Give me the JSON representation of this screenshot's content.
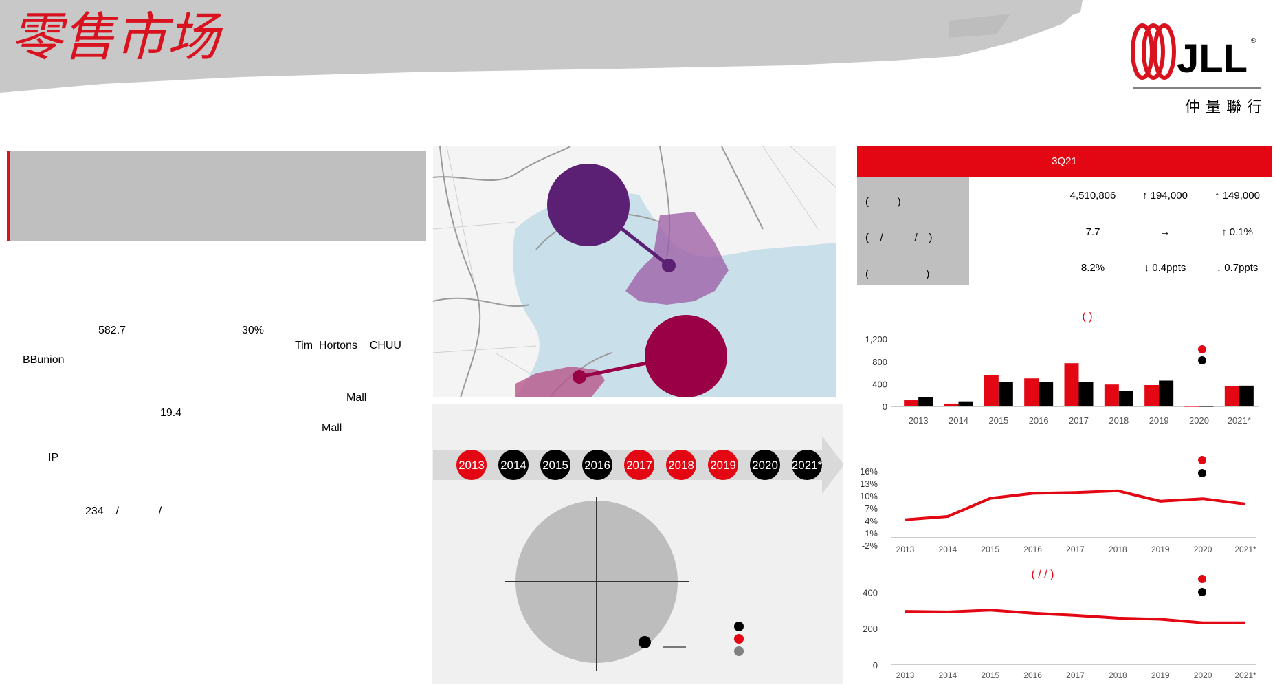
{
  "header": {
    "title_art": "零售市场",
    "logo_text": "JLL",
    "logo_sub": "仲量聯行"
  },
  "colors": {
    "red": "#e30613",
    "black": "#000000",
    "gray": "#808080",
    "purple": "#5b1f73",
    "magenta": "#9a0045"
  },
  "left_text": {
    "line1a": "582.7",
    "line1b": "30%",
    "line2": "Tim  Hortons    CHUU",
    "line3": "BBunion",
    "line4": "Mall",
    "line5": "19.4",
    "line6": "Mall",
    "line7": "IP",
    "line8": "234    /             /"
  },
  "timeline": {
    "years": [
      "2013",
      "2014",
      "2015",
      "2016",
      "2017",
      "2018",
      "2019",
      "2020",
      "2021*"
    ],
    "colors": [
      "red",
      "black",
      "black",
      "black",
      "red",
      "red",
      "red",
      "black",
      "black"
    ]
  },
  "table": {
    "header": "3Q21",
    "rows": [
      {
        "label": "(          )",
        "value": "4,510,806",
        "qoq": "↑ 194,000",
        "yoy": "↑ 149,000"
      },
      {
        "label": "(    /           /    )",
        "value": "7.7",
        "qoq": "→",
        "yoy": "↑ 0.1%"
      },
      {
        "label": "(                    )",
        "value": "8.2%",
        "qoq": "↓ 0.4ppts",
        "yoy": "↓ 0.7ppts"
      }
    ]
  },
  "chart_data": [
    {
      "type": "bar",
      "title": "(                    )",
      "categories": [
        "2013",
        "2014",
        "2015",
        "2016",
        "2017",
        "2018",
        "2019",
        "2020",
        "2021*"
      ],
      "series": [
        {
          "values": [
            110,
            50,
            560,
            500,
            770,
            390,
            380,
            5,
            360
          ]
        },
        {
          "values": [
            170,
            90,
            430,
            440,
            430,
            270,
            460,
            5,
            370
          ]
        }
      ],
      "yticks": [
        "0",
        "400",
        "800",
        "1,200"
      ],
      "ylim": [
        0,
        1300
      ]
    },
    {
      "type": "line",
      "categories": [
        "2013",
        "2014",
        "2015",
        "2016",
        "2017",
        "2018",
        "2019",
        "2020",
        "2021*"
      ],
      "series": [
        {
          "values": [
            4.2,
            5.0,
            9.4,
            10.6,
            10.8,
            11.2,
            8.7,
            9.3,
            8.0
          ]
        }
      ],
      "yticks": [
        "-2%",
        "1%",
        "4%",
        "7%",
        "10%",
        "13%",
        "16%"
      ],
      "ylim": [
        -2,
        16
      ]
    },
    {
      "type": "line",
      "title": "(    /             /    )",
      "categories": [
        "2013",
        "2014",
        "2015",
        "2016",
        "2017",
        "2018",
        "2019",
        "2020",
        "2021*"
      ],
      "series": [
        {
          "values": [
            295,
            292,
            302,
            285,
            273,
            258,
            252,
            232,
            232
          ]
        }
      ],
      "yticks": [
        "0",
        "200",
        "400"
      ],
      "ylim": [
        0,
        500
      ]
    }
  ]
}
